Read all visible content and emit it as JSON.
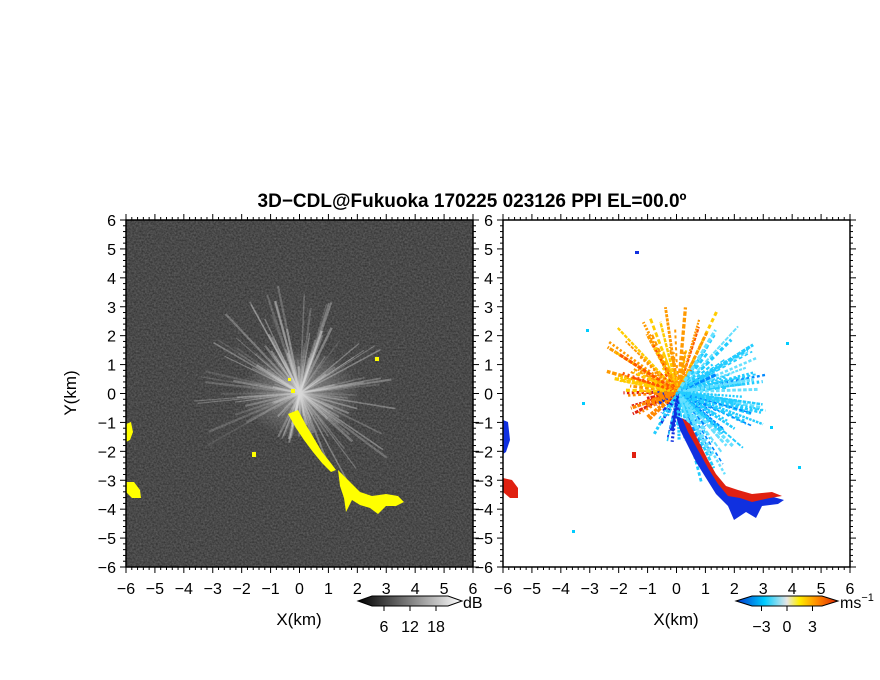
{
  "title": "3D−CDL@Fukuoka 170225 023126 PPI EL=00.0º",
  "chart_data": [
    {
      "type": "heatmap",
      "panel": "reflectivity",
      "xlabel": "X(km)",
      "ylabel": "Y(km)",
      "xlim": [
        -6,
        6
      ],
      "ylim": [
        -6,
        6
      ],
      "x_ticks": [
        "−6",
        "−5",
        "−4",
        "−3",
        "−2",
        "−1",
        "0",
        "1",
        "2",
        "3",
        "4",
        "5",
        "6"
      ],
      "y_ticks": [
        "6",
        "5",
        "4",
        "3",
        "2",
        "1",
        "0",
        "−1",
        "−2",
        "−3",
        "−4",
        "−5",
        "−6"
      ],
      "background_color": "#2a2a2a",
      "highlight_color": "#ffff00",
      "colorbar": {
        "unit": "dB",
        "tick_labels": [
          "6",
          "12",
          "18"
        ],
        "ticks": [
          6,
          12,
          18
        ],
        "range": [
          0,
          24
        ],
        "colors": [
          "#000000",
          "#ffffff"
        ]
      },
      "highlight_regions": [
        {
          "x": [
            -0.3,
            1.2
          ],
          "y": [
            -0.7,
            -2.8
          ],
          "note": "diagonal echo band"
        },
        {
          "x": [
            1.5,
            4.0
          ],
          "y": [
            -3.2,
            -4.2
          ],
          "note": "southeast echo"
        },
        {
          "x": [
            -6.0,
            -5.7
          ],
          "y": [
            -1.0,
            -1.6
          ]
        },
        {
          "x": [
            -6.0,
            -5.5
          ],
          "y": [
            -3.0,
            -3.6
          ]
        },
        {
          "x": [
            2.6,
            2.8
          ],
          "y": [
            1.2,
            1.0
          ]
        }
      ]
    },
    {
      "type": "heatmap",
      "panel": "doppler velocity",
      "xlabel": "X(km)",
      "xlim": [
        -6,
        6
      ],
      "ylim": [
        -6,
        6
      ],
      "x_ticks": [
        "−6",
        "−5",
        "−4",
        "−3",
        "−2",
        "−1",
        "0",
        "1",
        "2",
        "3",
        "4",
        "5",
        "6"
      ],
      "y_ticks": [
        "6",
        "5",
        "4",
        "3",
        "2",
        "1",
        "0",
        "−1",
        "−2",
        "−3",
        "−4",
        "−5",
        "−6"
      ],
      "colorbar": {
        "unit": "ms",
        "unit_exponent": "−1",
        "tick_labels": [
          "−3",
          "0",
          "3"
        ],
        "ticks": [
          -3,
          0,
          3
        ],
        "range": [
          -6,
          6
        ],
        "colors": [
          "#0033cc",
          "#00ccff",
          "#e6e6e6",
          "#ffee00",
          "#ff8800",
          "#dd2200"
        ]
      },
      "approaching_color": "#00ccff",
      "receding_color": "#ffa500",
      "edge_negative_color": "#1030e0",
      "edge_positive_color": "#e02010"
    }
  ]
}
